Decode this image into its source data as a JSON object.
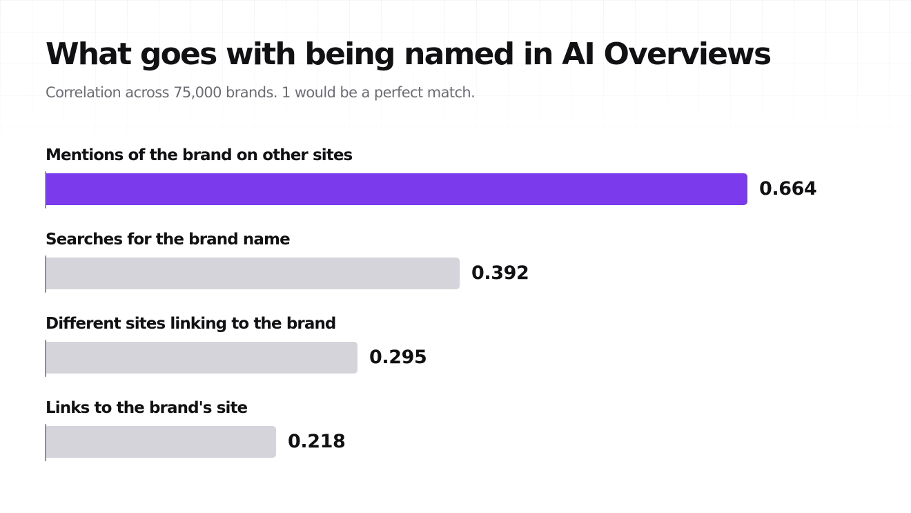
{
  "title": "What goes with being named in AI Overviews",
  "subtitle": "Correlation across 75,000 brands. 1 would be a perfect match.",
  "colors": {
    "highlight_bar": "#7c3aed",
    "default_bar": "#d4d4da",
    "text": "#111114",
    "subtitle": "#6c6c74"
  },
  "chart_data": {
    "type": "bar",
    "orientation": "horizontal",
    "title": "What goes with being named in AI Overviews",
    "subtitle": "Correlation across 75,000 brands. 1 would be a perfect match.",
    "categories": [
      "Mentions of the brand on other sites",
      "Searches for the brand name",
      "Different sites linking to the brand",
      "Links to the brand's site"
    ],
    "values": [
      0.664,
      0.392,
      0.295,
      0.218
    ],
    "value_labels": [
      "0.664",
      "0.392",
      "0.295",
      "0.218"
    ],
    "highlighted": [
      true,
      false,
      false,
      false
    ],
    "xlim": [
      0,
      0.664
    ],
    "grid": false,
    "legend": "none"
  }
}
